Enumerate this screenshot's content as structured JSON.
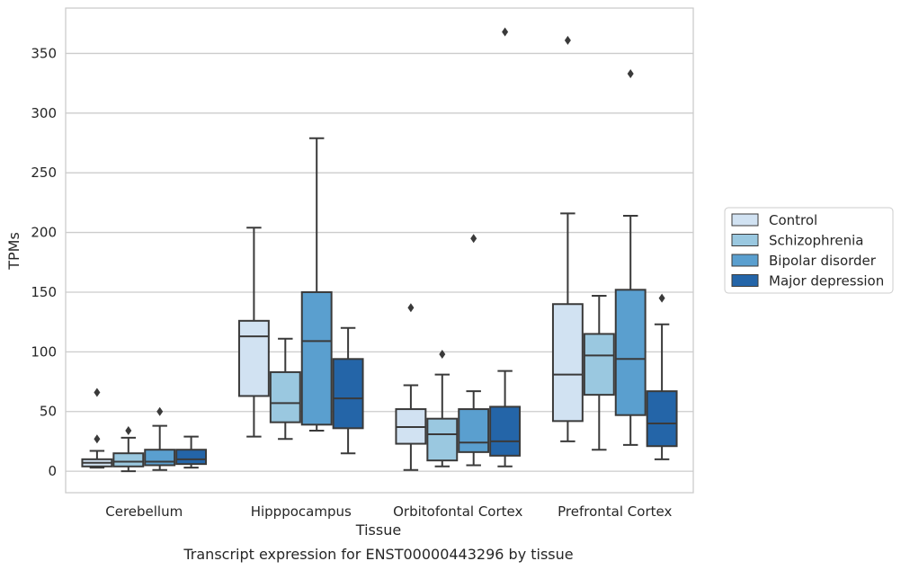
{
  "caption": "Transcript expression for ENST00000443296 by tissue",
  "chart_data": {
    "type": "box",
    "xlabel": "Tissue",
    "ylabel": "TPMs",
    "ylim": [
      -18,
      388
    ],
    "yticks": [
      0,
      50,
      100,
      150,
      200,
      250,
      300,
      350
    ],
    "grid": "horizontal",
    "legend_position": "right",
    "categories": [
      "Cerebellum",
      "Hipppocampus",
      "Orbitofontal Cortex",
      "Prefrontal Cortex"
    ],
    "series": [
      {
        "name": "Control",
        "color": "#d1e2f2",
        "boxes": [
          {
            "whisker_low": 3,
            "q1": 4,
            "median": 7,
            "q3": 10,
            "whisker_high": 17,
            "outliers": [
              27,
              66
            ]
          },
          {
            "whisker_low": 29,
            "q1": 63,
            "median": 113,
            "q3": 126,
            "whisker_high": 204,
            "outliers": []
          },
          {
            "whisker_low": 1,
            "q1": 23,
            "median": 37,
            "q3": 52,
            "whisker_high": 72,
            "outliers": [
              137
            ]
          },
          {
            "whisker_low": 25,
            "q1": 42,
            "median": 81,
            "q3": 140,
            "whisker_high": 216,
            "outliers": [
              361
            ]
          }
        ]
      },
      {
        "name": "Schizophrenia",
        "color": "#9ac8e0",
        "boxes": [
          {
            "whisker_low": 0,
            "q1": 4,
            "median": 8,
            "q3": 15,
            "whisker_high": 28,
            "outliers": [
              34
            ]
          },
          {
            "whisker_low": 27,
            "q1": 41,
            "median": 57,
            "q3": 83,
            "whisker_high": 111,
            "outliers": []
          },
          {
            "whisker_low": 4,
            "q1": 9,
            "median": 31,
            "q3": 44,
            "whisker_high": 81,
            "outliers": [
              98
            ]
          },
          {
            "whisker_low": 18,
            "q1": 64,
            "median": 97,
            "q3": 115,
            "whisker_high": 147,
            "outliers": []
          }
        ]
      },
      {
        "name": "Bipolar disorder",
        "color": "#5a9fcf",
        "boxes": [
          {
            "whisker_low": 1,
            "q1": 5,
            "median": 8,
            "q3": 18,
            "whisker_high": 38,
            "outliers": [
              50
            ]
          },
          {
            "whisker_low": 34,
            "q1": 39,
            "median": 109,
            "q3": 150,
            "whisker_high": 279,
            "outliers": []
          },
          {
            "whisker_low": 5,
            "q1": 16,
            "median": 24,
            "q3": 52,
            "whisker_high": 67,
            "outliers": [
              195
            ]
          },
          {
            "whisker_low": 22,
            "q1": 47,
            "median": 94,
            "q3": 152,
            "whisker_high": 214,
            "outliers": [
              333
            ]
          }
        ]
      },
      {
        "name": "Major depression",
        "color": "#2465a8",
        "boxes": [
          {
            "whisker_low": 3,
            "q1": 6,
            "median": 10,
            "q3": 18,
            "whisker_high": 29,
            "outliers": []
          },
          {
            "whisker_low": 15,
            "q1": 36,
            "median": 61,
            "q3": 94,
            "whisker_high": 120,
            "outliers": []
          },
          {
            "whisker_low": 4,
            "q1": 13,
            "median": 25,
            "q3": 54,
            "whisker_high": 84,
            "outliers": [
              368
            ]
          },
          {
            "whisker_low": 10,
            "q1": 21,
            "median": 40,
            "q3": 67,
            "whisker_high": 123,
            "outliers": [
              145
            ]
          }
        ]
      }
    ]
  }
}
